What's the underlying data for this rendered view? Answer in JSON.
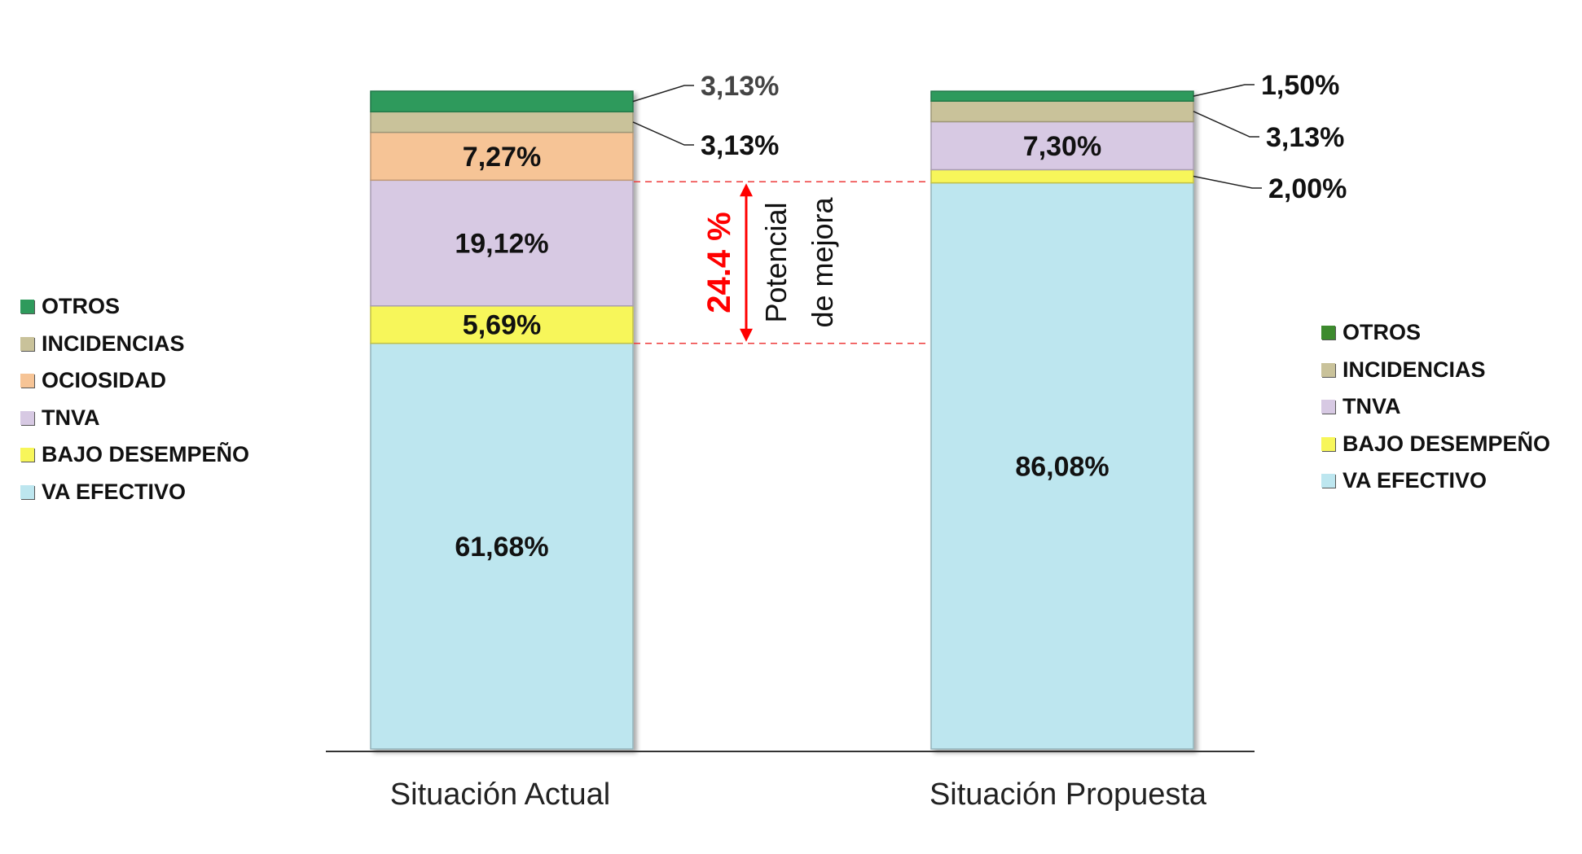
{
  "chart_data": {
    "type": "bar",
    "stacked": true,
    "title": "",
    "xlabel": "",
    "ylabel": "",
    "ylim": [
      0,
      100
    ],
    "categories": [
      "Situación Actual",
      "Situación Propuesta"
    ],
    "series": [
      {
        "name": "VA EFECTIVO",
        "values": [
          61.68,
          86.08
        ],
        "labels": [
          "61,68%",
          "86,08%"
        ]
      },
      {
        "name": "BAJO DESEMPEÑO",
        "values": [
          5.69,
          2.0
        ],
        "labels": [
          "5,69%",
          "2,00%"
        ]
      },
      {
        "name": "TNVA",
        "values": [
          19.12,
          7.3
        ],
        "labels": [
          "19,12%",
          "7,30%"
        ]
      },
      {
        "name": "OCIOSIDAD",
        "values": [
          7.27,
          0
        ],
        "labels": [
          "7,27%",
          ""
        ]
      },
      {
        "name": "INCIDENCIAS",
        "values": [
          3.13,
          3.13
        ],
        "labels": [
          "3,13%",
          "3,13%"
        ]
      },
      {
        "name": "OTROS",
        "values": [
          3.13,
          1.5
        ],
        "labels": [
          "3,13%",
          "1,50%"
        ]
      }
    ],
    "annotation": {
      "value_text": "24.4 %",
      "text_line1": "Potencial",
      "text_line2": "de mejora",
      "color": "#ff0000"
    },
    "colors": {
      "VA EFECTIVO": "#bde6ef",
      "BAJO DESEMPEÑO": "#f7f65a",
      "TNVA": "#d7c9e3",
      "OCIOSIDAD": "#f6c496",
      "INCIDENCIAS": "#c9c29a",
      "OTROS": "#2e9a5c"
    },
    "legend_left": {
      "position": "left",
      "items": [
        "OTROS",
        "INCIDENCIAS",
        "OCIOSIDAD",
        "TNVA",
        "BAJO DESEMPEÑO",
        "VA EFECTIVO"
      ]
    },
    "legend_right": {
      "position": "right",
      "items": [
        "OTROS",
        "INCIDENCIAS",
        "TNVA",
        "BAJO DESEMPEÑO",
        "VA EFECTIVO"
      ],
      "otros_color": "#3d8a2e"
    }
  }
}
